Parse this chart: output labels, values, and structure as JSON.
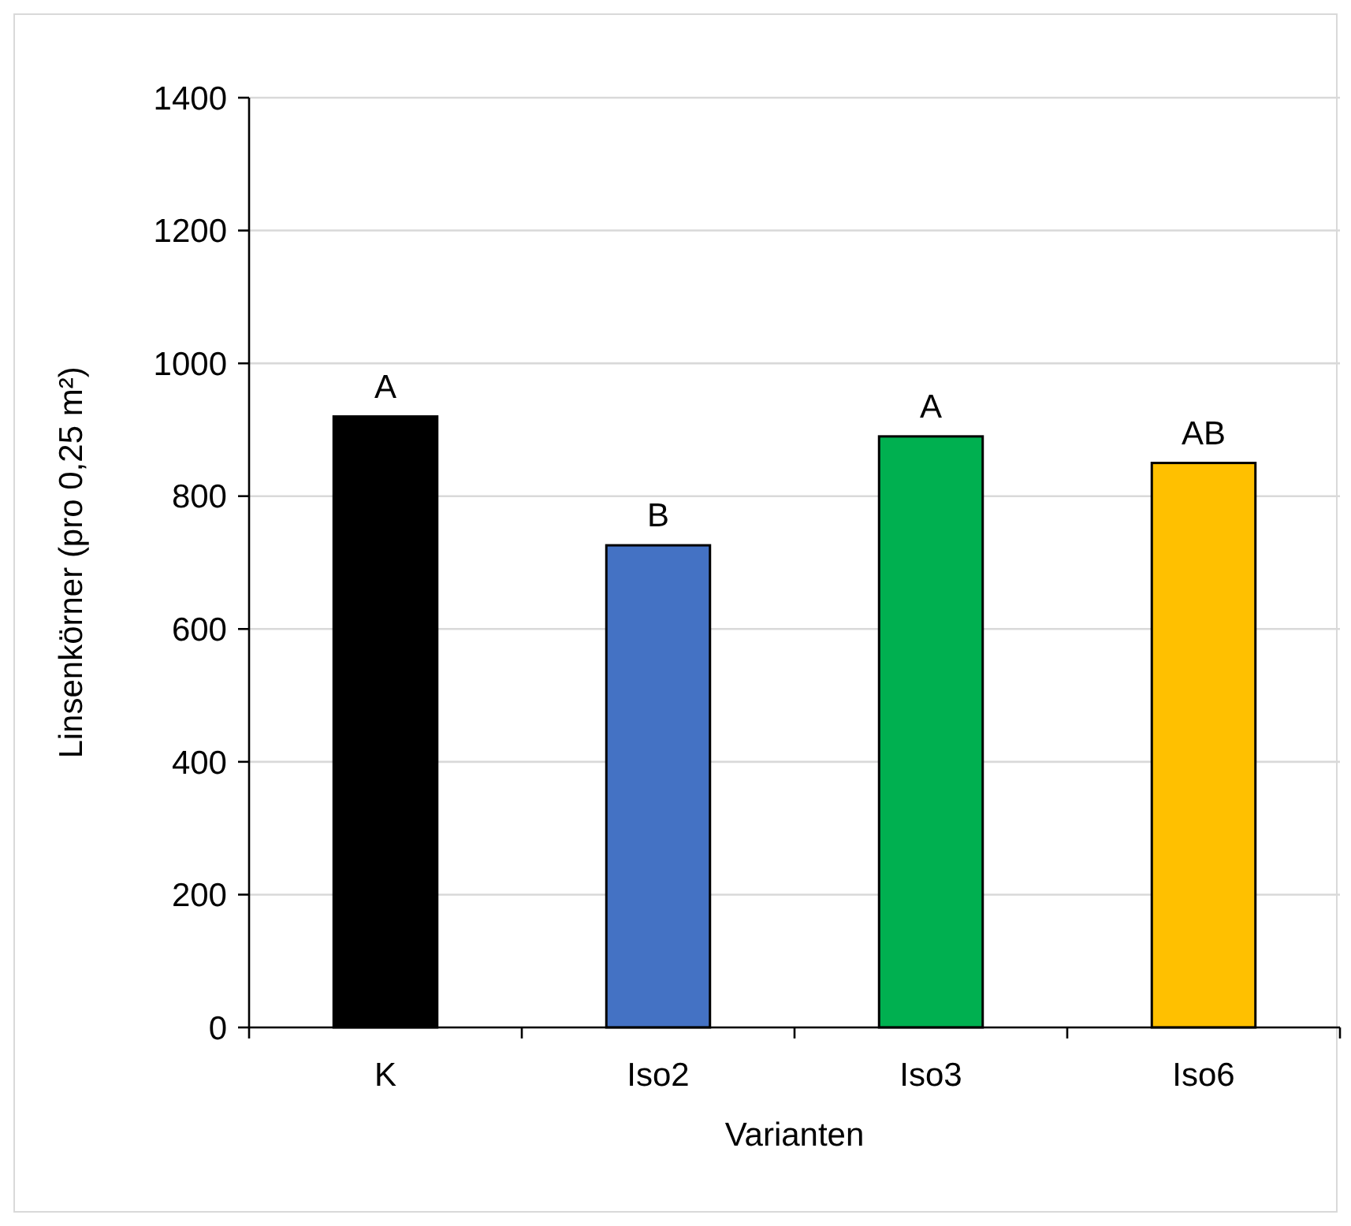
{
  "chart_data": {
    "type": "bar",
    "xlabel": "Varianten",
    "ylabel": "Linsenkörner (pro 0,25 m²)",
    "categories": [
      "K",
      "Iso2",
      "Iso3",
      "Iso6"
    ],
    "values": [
      920,
      726,
      890,
      850
    ],
    "colors": [
      "#000000",
      "#4472c4",
      "#00b050",
      "#ffc000"
    ],
    "ylim": [
      0,
      1400
    ],
    "yticks": [
      0,
      200,
      400,
      600,
      800,
      1000,
      1200,
      1400
    ],
    "grid": "y",
    "annotations": [
      {
        "text": "A",
        "x": "K",
        "y": 920
      },
      {
        "text": "B",
        "x": "Iso2",
        "y": 726
      },
      {
        "text": "A",
        "x": "Iso3",
        "y": 890
      },
      {
        "text": "AB",
        "x": "Iso6",
        "y": 850
      }
    ]
  }
}
